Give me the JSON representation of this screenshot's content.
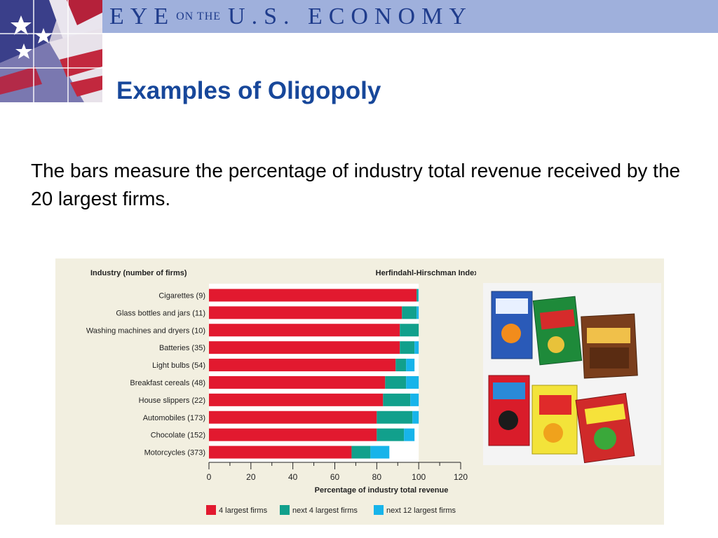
{
  "header": {
    "banner_part1": "EYE",
    "banner_part2": "ON THE",
    "banner_part3": "U.S. ECONOMY"
  },
  "slide": {
    "title": "Examples of Oligopoly",
    "intro": "The bars measure the percentage of industry total revenue received by the 20 largest firms."
  },
  "images": {
    "logo": "flag-stars-stripes",
    "photo": "cereal-boxes"
  },
  "chart_data": {
    "type": "bar",
    "orientation": "horizontal",
    "stacked": true,
    "left_header": "Industry (number of firms)",
    "right_header": "Herfindahl-Hirschman Index",
    "xlabel": "Percentage of industry total revenue",
    "xlim": [
      0,
      120
    ],
    "xticks": [
      "0",
      "20",
      "40",
      "60",
      "80",
      "100",
      "120"
    ],
    "categories": [
      "Cigarettes  (9)",
      "Glass bottles and jars  (11)",
      "Washing machines and dryers  (10)",
      "Batteries  (35)",
      "Light bulbs  (54)",
      "Breakfast cereals  (48)",
      "House slippers  (22)",
      "Automobiles  (173)",
      "Chocolate  (152)",
      "Motorcycles  (373)"
    ],
    "series": [
      {
        "name": "4 largest firms",
        "color": "#e2192f",
        "values": [
          99,
          92,
          91,
          91,
          89,
          84,
          83,
          80,
          80,
          68
        ]
      },
      {
        "name": "next 4 largest firms",
        "color": "#11a08c",
        "values": [
          0.7,
          7,
          9,
          7,
          5,
          10,
          13,
          17,
          13,
          9
        ]
      },
      {
        "name": "next 12 largest firms",
        "color": "#17b4ea",
        "values": [
          0.3,
          1,
          0,
          2,
          4,
          6,
          4,
          3,
          5,
          9
        ]
      }
    ],
    "legend_position": "bottom",
    "grid": false
  }
}
